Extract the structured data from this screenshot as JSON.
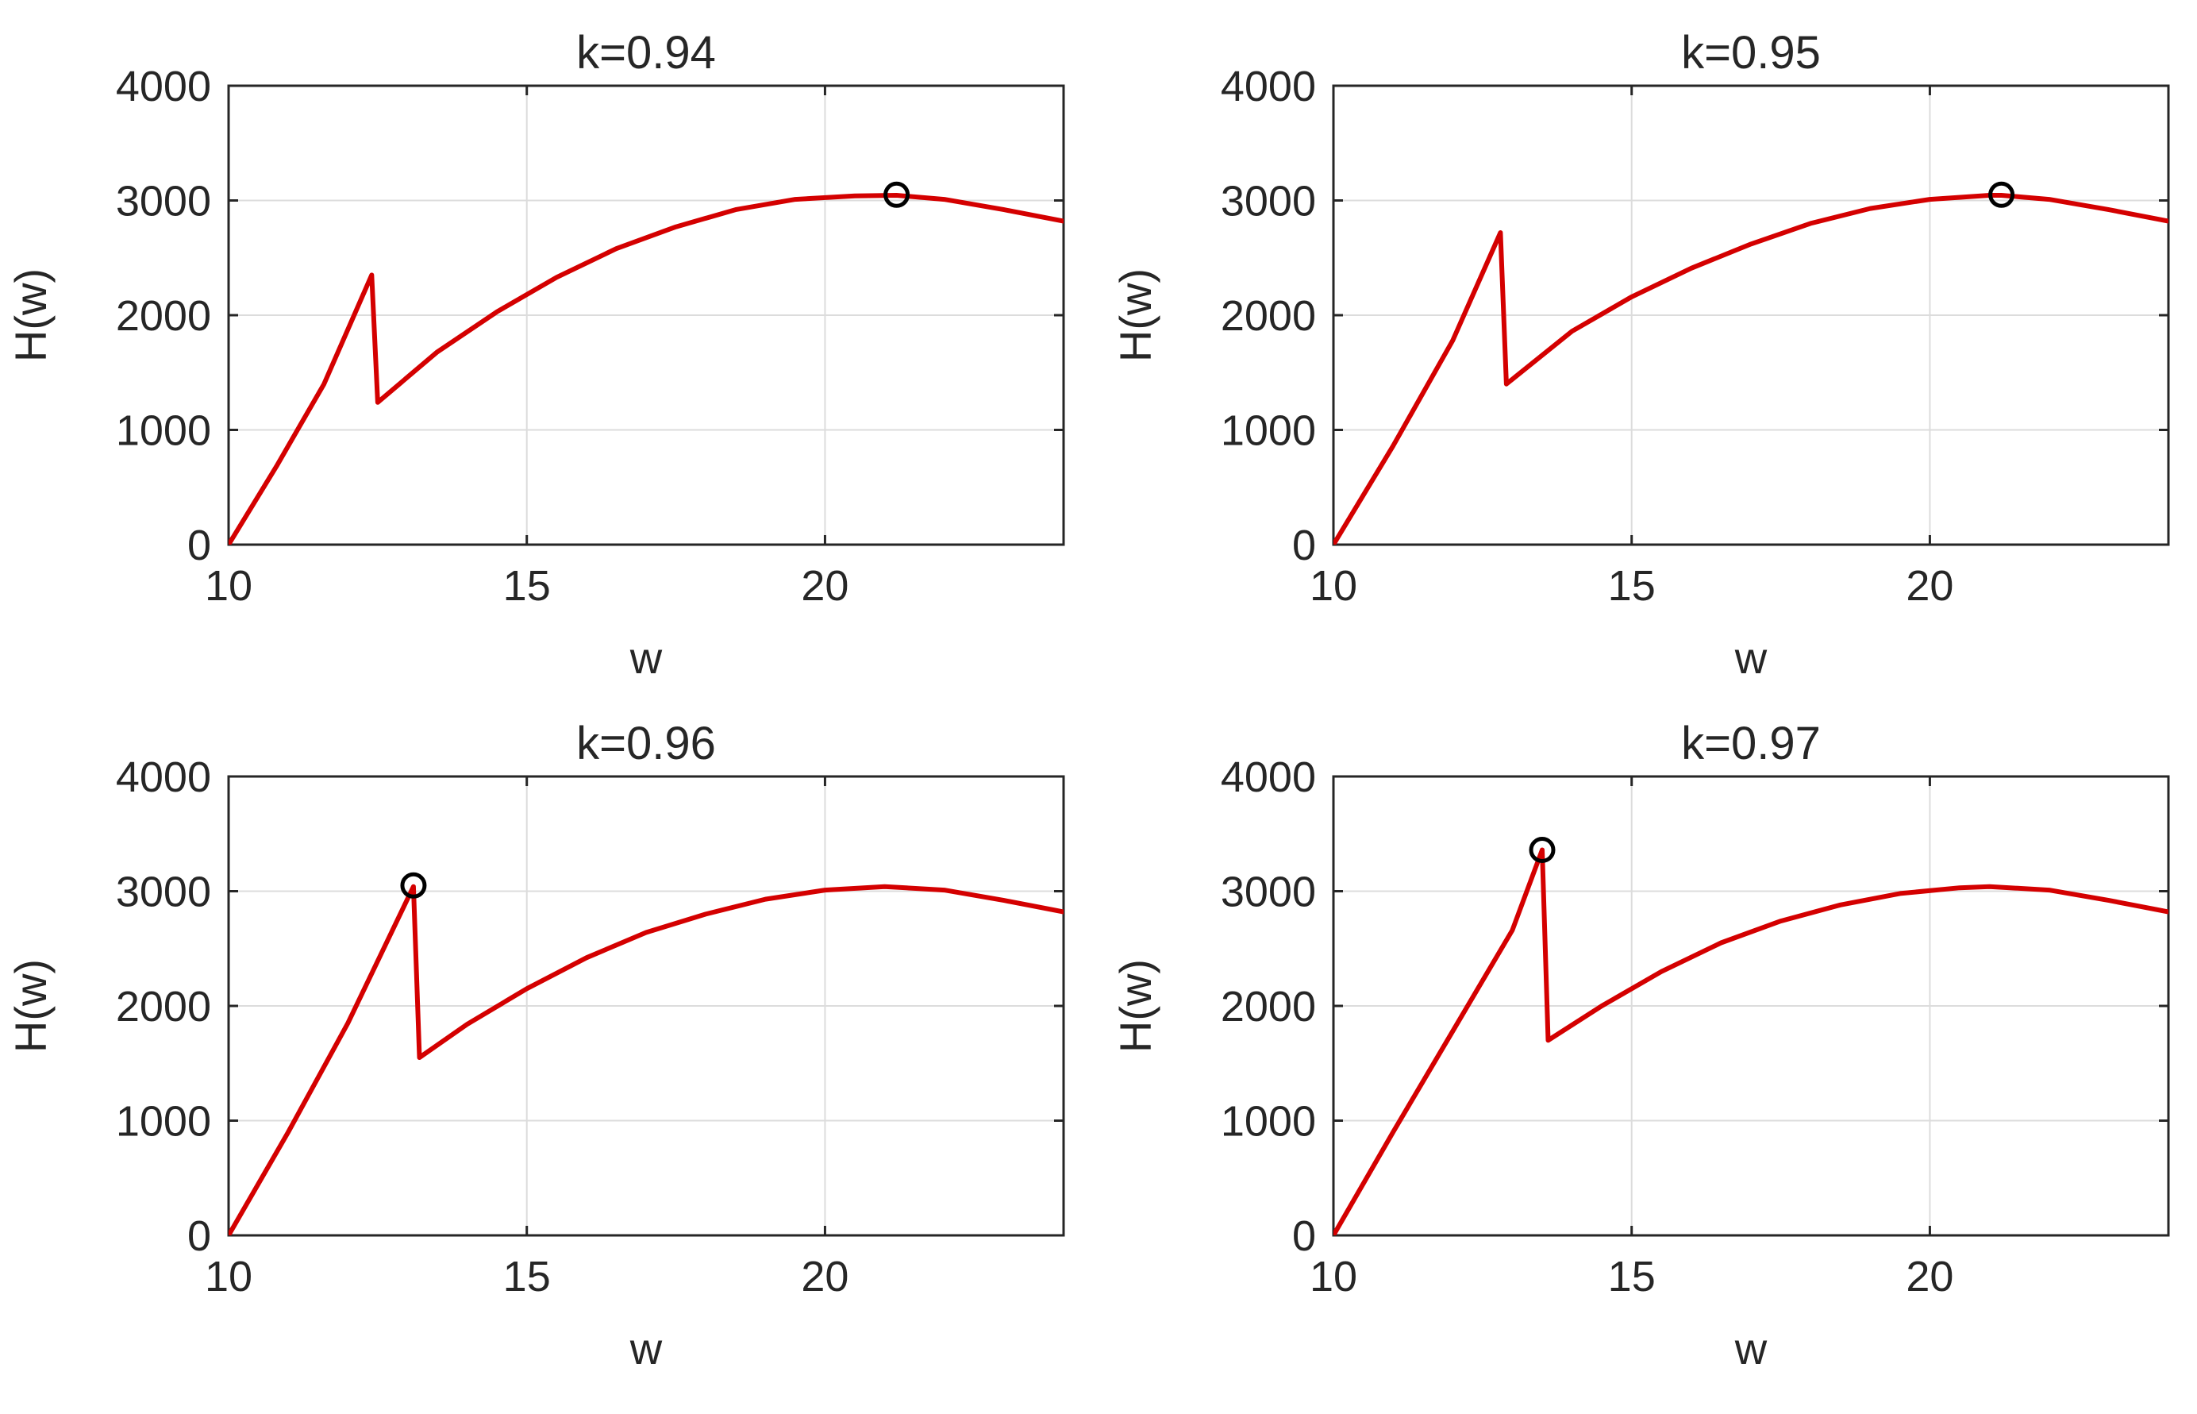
{
  "colors": {
    "curve": "#d40000",
    "marker": "#000000",
    "grid": "#dcdcdc",
    "axes": "#262626"
  },
  "chart_data": [
    {
      "type": "line",
      "title": "k=0.94",
      "xlabel": "w",
      "ylabel": "H(w)",
      "xlim": [
        10,
        24
      ],
      "ylim": [
        0,
        4000
      ],
      "xticks": [
        10,
        15,
        20
      ],
      "yticks": [
        0,
        1000,
        2000,
        3000,
        4000
      ],
      "grid": true,
      "series": [
        {
          "x": [
            10,
            10.8,
            11.6,
            12.4,
            12.5,
            13.5,
            14.5,
            15.5,
            16.5,
            17.5,
            18.5,
            19.5,
            20.5,
            21.2,
            22,
            23,
            24
          ],
          "values": [
            0,
            680,
            1400,
            2350,
            1240,
            1680,
            2030,
            2330,
            2580,
            2770,
            2920,
            3010,
            3040,
            3045,
            3010,
            2920,
            2820
          ]
        }
      ],
      "marker": {
        "x": 21.2,
        "y": 3050
      }
    },
    {
      "type": "line",
      "title": "k=0.95",
      "xlabel": "w",
      "ylabel": "H(w)",
      "xlim": [
        10,
        24
      ],
      "ylim": [
        0,
        4000
      ],
      "xticks": [
        10,
        15,
        20
      ],
      "yticks": [
        0,
        1000,
        2000,
        3000,
        4000
      ],
      "grid": true,
      "series": [
        {
          "x": [
            10,
            11,
            12,
            12.8,
            12.9,
            14,
            15,
            16,
            17,
            18,
            19,
            20,
            21,
            21.2,
            22,
            23,
            24
          ],
          "values": [
            0,
            860,
            1780,
            2720,
            1400,
            1860,
            2160,
            2410,
            2620,
            2800,
            2930,
            3010,
            3045,
            3045,
            3010,
            2920,
            2820
          ]
        }
      ],
      "marker": {
        "x": 21.2,
        "y": 3050
      }
    },
    {
      "type": "line",
      "title": "k=0.96",
      "xlabel": "w",
      "ylabel": "H(w)",
      "xlim": [
        10,
        24
      ],
      "ylim": [
        0,
        4000
      ],
      "xticks": [
        10,
        15,
        20
      ],
      "yticks": [
        0,
        1000,
        2000,
        3000,
        4000
      ],
      "grid": true,
      "series": [
        {
          "x": [
            10,
            11,
            12,
            13.1,
            13.2,
            14,
            15,
            16,
            17,
            18,
            19,
            20,
            21,
            22,
            23,
            24
          ],
          "values": [
            0,
            900,
            1850,
            3040,
            1550,
            1840,
            2150,
            2420,
            2640,
            2800,
            2930,
            3010,
            3040,
            3010,
            2920,
            2820
          ]
        }
      ],
      "marker": {
        "x": 13.1,
        "y": 3050
      }
    },
    {
      "type": "line",
      "title": "k=0.97",
      "xlabel": "w",
      "ylabel": "H(w)",
      "xlim": [
        10,
        24
      ],
      "ylim": [
        0,
        4000
      ],
      "xticks": [
        10,
        15,
        20
      ],
      "yticks": [
        0,
        1000,
        2000,
        3000,
        4000
      ],
      "grid": true,
      "series": [
        {
          "x": [
            10,
            11,
            12,
            13,
            13.5,
            13.6,
            14.5,
            15.5,
            16.5,
            17.5,
            18.5,
            19.5,
            20.5,
            21,
            22,
            23,
            24
          ],
          "values": [
            0,
            900,
            1780,
            2660,
            3360,
            1700,
            2000,
            2300,
            2550,
            2740,
            2880,
            2980,
            3030,
            3040,
            3010,
            2920,
            2820
          ]
        }
      ],
      "marker": {
        "x": 13.5,
        "y": 3360
      }
    }
  ]
}
